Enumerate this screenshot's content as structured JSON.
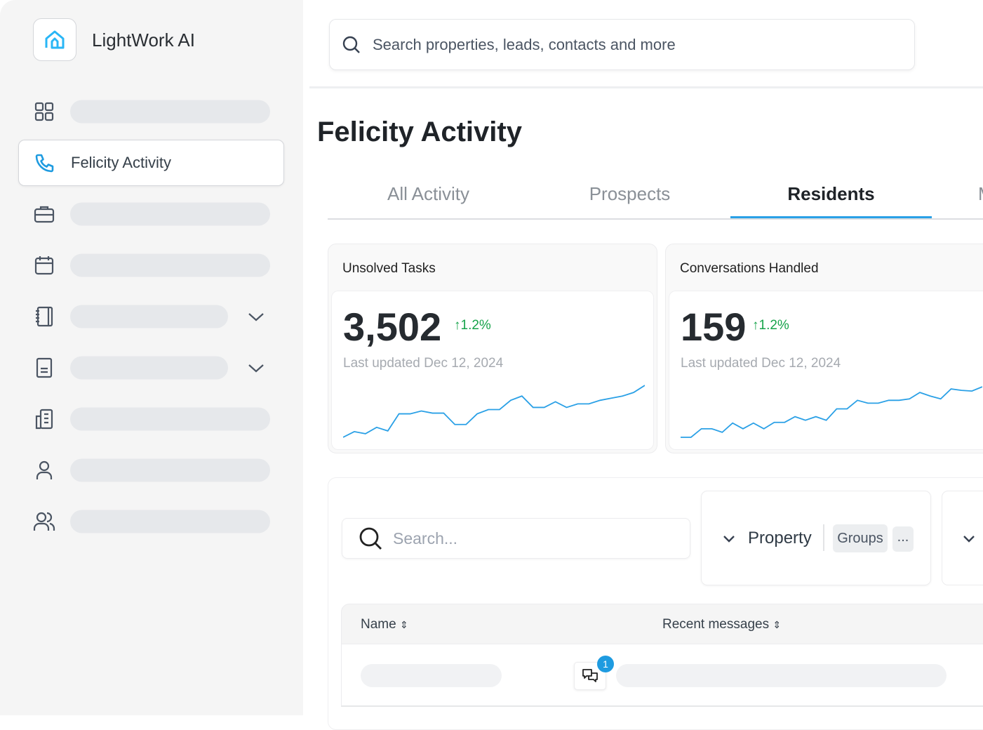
{
  "app": {
    "brand": "LightWork AI",
    "logo_icon": "house-icon",
    "accent": "#2aa0e6"
  },
  "sidebar": {
    "items": [
      {
        "icon": "grid-icon",
        "label": null
      },
      {
        "icon": "phone-icon",
        "label": "Felicity Activity",
        "active": true
      },
      {
        "icon": "briefcase-icon",
        "label": null
      },
      {
        "icon": "calendar-icon",
        "label": null
      },
      {
        "icon": "notebook-icon",
        "label": null,
        "expandable": true
      },
      {
        "icon": "book-icon",
        "label": null,
        "expandable": true
      },
      {
        "icon": "building-icon",
        "label": null
      },
      {
        "icon": "user-icon",
        "label": null
      },
      {
        "icon": "users-icon",
        "label": null
      }
    ]
  },
  "search": {
    "placeholder": "Search properties, leads, contacts and more"
  },
  "page": {
    "title": "Felicity Activity"
  },
  "tabs": [
    {
      "label": "All Activity"
    },
    {
      "label": "Prospects"
    },
    {
      "label": "Residents",
      "active": true
    },
    {
      "label": "M"
    }
  ],
  "cards": [
    {
      "title": "Unsolved Tasks",
      "value": "3,502",
      "delta": "1.2%",
      "delta_color": "#16a34a",
      "updated": "Last updated Dec 12, 2024",
      "sparkline": [
        0,
        8,
        5,
        14,
        9,
        33,
        33,
        37,
        34,
        34,
        18,
        18,
        33,
        39,
        39,
        52,
        58,
        42,
        42,
        50,
        42,
        47,
        47,
        52,
        55,
        58,
        63,
        73
      ]
    },
    {
      "title": "Conversations Handled",
      "value": "159",
      "delta": "1.2%",
      "delta_color": "#16a34a",
      "updated": "Last updated Dec 12, 2024",
      "sparkline": [
        0,
        0,
        12,
        12,
        7,
        20,
        12,
        20,
        12,
        21,
        21,
        29,
        24,
        29,
        24,
        40,
        40,
        52,
        48,
        48,
        52,
        52,
        54,
        63,
        58,
        54,
        68,
        66,
        65,
        71
      ]
    }
  ],
  "table": {
    "search_placeholder": "Search...",
    "filter": {
      "label": "Property",
      "chip": "Groups",
      "more": "..."
    },
    "columns": [
      {
        "label": "Name"
      },
      {
        "label": "Recent messages"
      }
    ],
    "rows": [
      {
        "unread_badge": "1"
      }
    ]
  }
}
